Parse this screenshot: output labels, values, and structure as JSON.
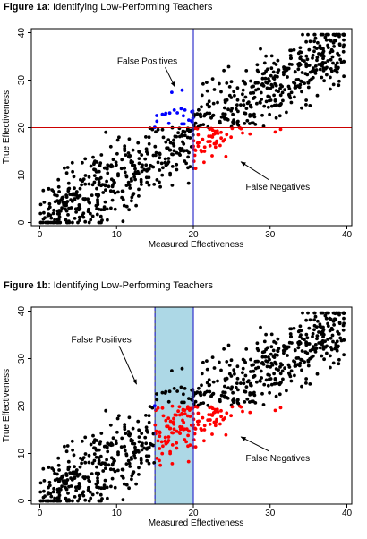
{
  "chart_data": [
    {
      "type": "scatter",
      "title_prefix": "Figure 1a",
      "title_rest": ": Identifying Low-Performing Teachers",
      "xlabel": "Measured Effectiveness",
      "ylabel": "True Effectiveness",
      "xlim": [
        0,
        40
      ],
      "ylim": [
        0,
        40
      ],
      "xticks": [
        0,
        10,
        20,
        30,
        40
      ],
      "yticks": [
        0,
        10,
        20,
        30,
        40
      ],
      "hline_y": 20,
      "vline_x": 20,
      "shaded_x": null,
      "grid": false,
      "colors": {
        "points": "#000000",
        "false_positives": "#0000ff",
        "false_negatives": "#ff0000",
        "hline": "#cc0000",
        "vline": "#3333cc",
        "shade": "#add8e6"
      },
      "annotations": [
        {
          "text": "False Positives",
          "x": 14,
          "y": 34,
          "arrow_to": [
            17.6,
            28.6
          ]
        },
        {
          "text": "False Negatives",
          "x": 31,
          "y": 7.5,
          "arrow_to": [
            26.2,
            12.8
          ]
        }
      ]
    },
    {
      "type": "scatter",
      "title_prefix": "Figure 1b",
      "title_rest": ": Identifying Low-Performing Teachers",
      "xlabel": "Measured Effectiveness",
      "ylabel": "True Effectiveness",
      "xlim": [
        0,
        40
      ],
      "ylim": [
        0,
        40
      ],
      "xticks": [
        0,
        10,
        20,
        30,
        40
      ],
      "yticks": [
        0,
        10,
        20,
        30,
        40
      ],
      "hline_y": 20,
      "vline_x": 20,
      "shaded_x": [
        15,
        20
      ],
      "grid": false,
      "colors": {
        "points": "#000000",
        "false_positives": "#0000ff",
        "false_negatives": "#ff0000",
        "hline": "#cc0000",
        "vline": "#3333cc",
        "shade": "#add8e6"
      },
      "annotations": [
        {
          "text": "False Positives",
          "x": 8,
          "y": 34,
          "arrow_to": [
            12.6,
            24.6
          ]
        },
        {
          "text": "False Negatives",
          "x": 31,
          "y": 9,
          "arrow_to": [
            26.2,
            13.5
          ]
        }
      ]
    }
  ]
}
